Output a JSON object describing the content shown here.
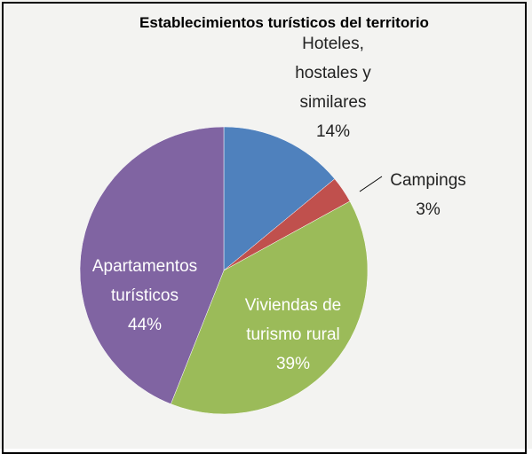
{
  "chart_data": {
    "type": "pie",
    "title": "Establecimientos turísticos del territorio",
    "categories": [
      "Hoteles, hostales y similares",
      "Campings",
      "Viviendas de turismo rural",
      "Apartamentos turísticos"
    ],
    "values": [
      14,
      3,
      39,
      44
    ],
    "value_labels": [
      "14%",
      "3%",
      "39%",
      "44%"
    ],
    "colors": [
      "#4f81bd",
      "#c0504d",
      "#9bbb59",
      "#8064a2"
    ]
  }
}
